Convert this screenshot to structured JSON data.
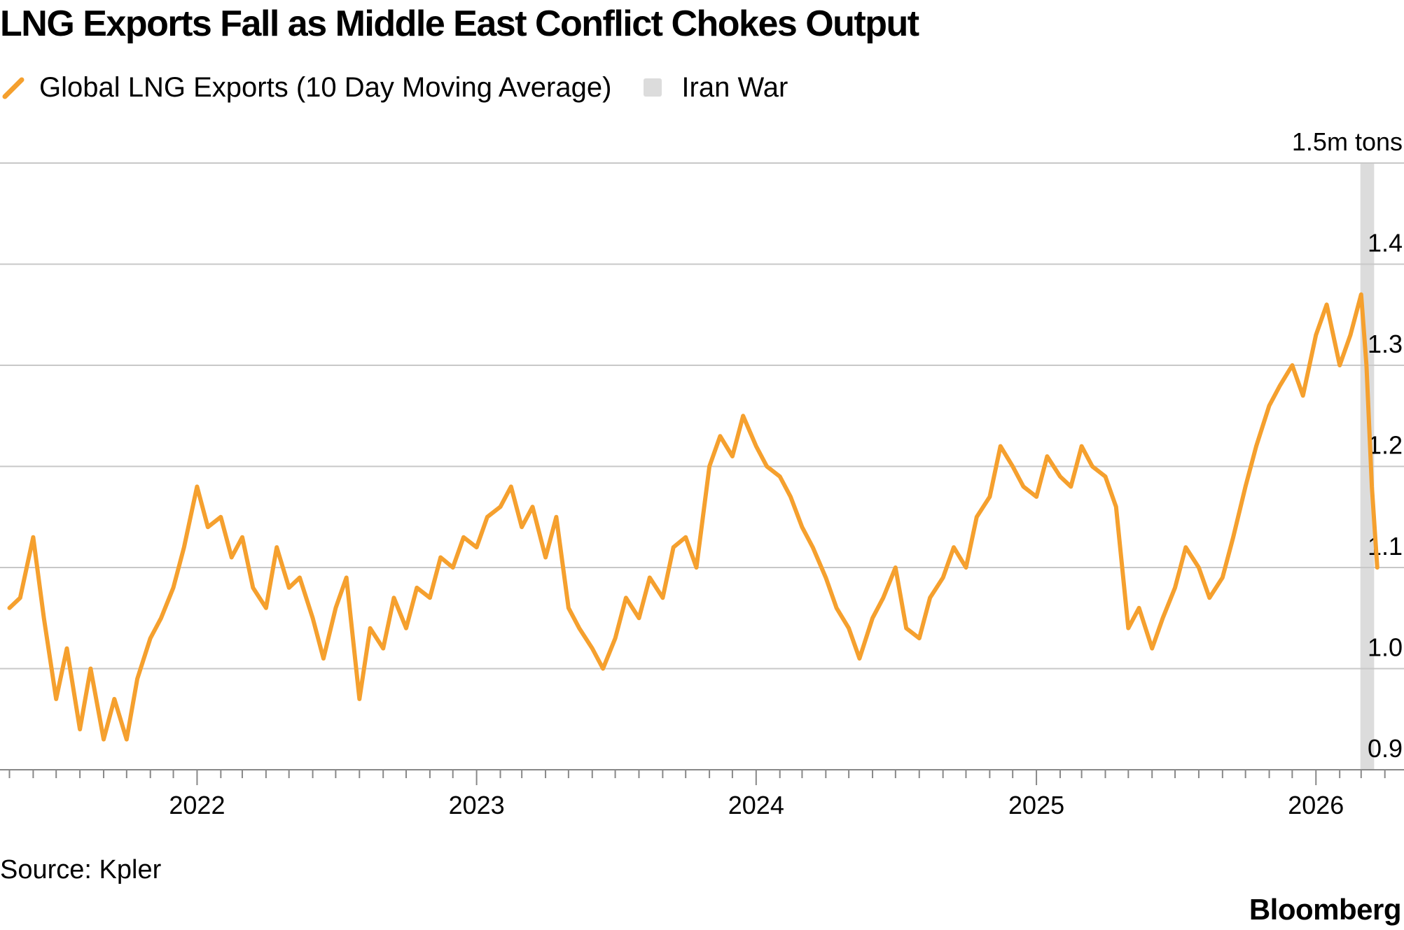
{
  "title": "LNG Exports Fall as Middle East Conflict Chokes Output",
  "legend": {
    "series_label": "Global LNG Exports (10 Day Moving Average)",
    "band_label": "Iran War"
  },
  "colors": {
    "series": "#f5a02e",
    "band": "#dcdcdc",
    "gridline": "#c8c8c8",
    "axis": "#888888"
  },
  "icons": {
    "series": "diagonal-line-icon",
    "band": "square-swatch-icon"
  },
  "source": "Source: Kpler",
  "brand": "Bloomberg",
  "chart_data": {
    "type": "line",
    "title": "LNG Exports Fall as Middle East Conflict Chokes Output",
    "x_unit": "date",
    "y_unit_label": "1.5m tons",
    "yticks": [
      0.9,
      1.0,
      1.1,
      1.2,
      1.3,
      1.4,
      1.5
    ],
    "ytick_labels": [
      "0.9",
      "1.0",
      "1.1",
      "1.2",
      "1.3",
      "1.4",
      "1.5m tons"
    ],
    "ylim": [
      0.9,
      1.5
    ],
    "xlim": [
      "2021-04-15",
      "2026-04-15"
    ],
    "xticks": [
      "2022-01-01",
      "2023-01-01",
      "2024-01-01",
      "2025-01-01",
      "2026-01-01"
    ],
    "xtick_labels": [
      "2022",
      "2023",
      "2024",
      "2025",
      "2026"
    ],
    "grid": true,
    "legend_position": "top-left",
    "y_axis_position": "right",
    "shaded_regions": [
      {
        "name": "Iran War",
        "start": "2026-02-28",
        "end": "2026-03-18"
      }
    ],
    "series": [
      {
        "name": "Global LNG Exports (10 Day Moving Average)",
        "x": [
          "2021-05-01",
          "2021-05-15",
          "2021-06-01",
          "2021-06-15",
          "2021-07-01",
          "2021-07-15",
          "2021-08-01",
          "2021-08-15",
          "2021-09-01",
          "2021-09-15",
          "2021-10-01",
          "2021-10-15",
          "2021-11-01",
          "2021-11-15",
          "2021-12-01",
          "2021-12-15",
          "2022-01-01",
          "2022-01-15",
          "2022-02-01",
          "2022-02-15",
          "2022-03-01",
          "2022-03-15",
          "2022-04-01",
          "2022-04-15",
          "2022-05-01",
          "2022-05-15",
          "2022-06-01",
          "2022-06-15",
          "2022-07-01",
          "2022-07-15",
          "2022-08-01",
          "2022-08-15",
          "2022-09-01",
          "2022-09-15",
          "2022-10-01",
          "2022-10-15",
          "2022-11-01",
          "2022-11-15",
          "2022-12-01",
          "2022-12-15",
          "2023-01-01",
          "2023-01-15",
          "2023-02-01",
          "2023-02-15",
          "2023-03-01",
          "2023-03-15",
          "2023-04-01",
          "2023-04-15",
          "2023-05-01",
          "2023-05-15",
          "2023-06-01",
          "2023-06-15",
          "2023-07-01",
          "2023-07-15",
          "2023-08-01",
          "2023-08-15",
          "2023-09-01",
          "2023-09-15",
          "2023-10-01",
          "2023-10-15",
          "2023-11-01",
          "2023-11-15",
          "2023-12-01",
          "2023-12-15",
          "2024-01-01",
          "2024-01-15",
          "2024-02-01",
          "2024-02-15",
          "2024-03-01",
          "2024-03-15",
          "2024-04-01",
          "2024-04-15",
          "2024-05-01",
          "2024-05-15",
          "2024-06-01",
          "2024-06-15",
          "2024-07-01",
          "2024-07-15",
          "2024-08-01",
          "2024-08-15",
          "2024-09-01",
          "2024-09-15",
          "2024-10-01",
          "2024-10-15",
          "2024-11-01",
          "2024-11-15",
          "2024-12-01",
          "2024-12-15",
          "2025-01-01",
          "2025-01-15",
          "2025-02-01",
          "2025-02-15",
          "2025-03-01",
          "2025-03-15",
          "2025-04-01",
          "2025-04-15",
          "2025-05-01",
          "2025-05-15",
          "2025-06-01",
          "2025-06-15",
          "2025-07-01",
          "2025-07-15",
          "2025-08-01",
          "2025-08-15",
          "2025-09-01",
          "2025-09-15",
          "2025-10-01",
          "2025-10-15",
          "2025-11-01",
          "2025-11-15",
          "2025-12-01",
          "2025-12-15",
          "2026-01-01",
          "2026-01-15",
          "2026-02-01",
          "2026-02-15",
          "2026-03-01",
          "2026-03-08",
          "2026-03-15",
          "2026-03-22"
        ],
        "y": [
          1.06,
          1.07,
          1.13,
          1.05,
          0.97,
          1.02,
          0.94,
          1.0,
          0.93,
          0.97,
          0.93,
          0.99,
          1.03,
          1.05,
          1.08,
          1.12,
          1.18,
          1.14,
          1.15,
          1.11,
          1.13,
          1.08,
          1.06,
          1.12,
          1.08,
          1.09,
          1.05,
          1.01,
          1.06,
          1.09,
          0.97,
          1.04,
          1.02,
          1.07,
          1.04,
          1.08,
          1.07,
          1.11,
          1.1,
          1.13,
          1.12,
          1.15,
          1.16,
          1.18,
          1.14,
          1.16,
          1.11,
          1.15,
          1.06,
          1.04,
          1.02,
          1.0,
          1.03,
          1.07,
          1.05,
          1.09,
          1.07,
          1.12,
          1.13,
          1.1,
          1.2,
          1.23,
          1.21,
          1.25,
          1.22,
          1.2,
          1.19,
          1.17,
          1.14,
          1.12,
          1.09,
          1.06,
          1.04,
          1.01,
          1.05,
          1.07,
          1.1,
          1.04,
          1.03,
          1.07,
          1.09,
          1.12,
          1.1,
          1.15,
          1.17,
          1.22,
          1.2,
          1.18,
          1.17,
          1.21,
          1.19,
          1.18,
          1.22,
          1.2,
          1.19,
          1.16,
          1.04,
          1.06,
          1.02,
          1.05,
          1.08,
          1.12,
          1.1,
          1.07,
          1.09,
          1.13,
          1.18,
          1.22,
          1.26,
          1.28,
          1.3,
          1.27,
          1.33,
          1.36,
          1.3,
          1.33,
          1.37,
          1.3,
          1.18,
          1.1
        ]
      }
    ]
  }
}
